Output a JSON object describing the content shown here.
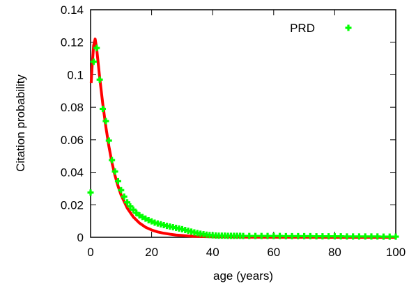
{
  "chart_data": {
    "type": "scatter",
    "xlabel": "age (years)",
    "ylabel": "Citation probability",
    "xlim": [
      0,
      100
    ],
    "ylim": [
      0,
      0.14
    ],
    "x_ticks": [
      "0",
      "20",
      "40",
      "60",
      "80",
      "100"
    ],
    "y_ticks": [
      "0",
      "0.02",
      "0.04",
      "0.06",
      "0.08",
      "0.1",
      "0.12",
      "0.14"
    ],
    "grid": false,
    "legend_position": "top-right",
    "series": [
      {
        "name": "PRD",
        "color": "#00ff00",
        "marker": "plus",
        "x": [
          0,
          1,
          2,
          3,
          4,
          5,
          6,
          7,
          8,
          9,
          10,
          11,
          12,
          13,
          14,
          15,
          16,
          17,
          18,
          19,
          20,
          21,
          22,
          23,
          24,
          25,
          26,
          27,
          28,
          29,
          30,
          31,
          32,
          33,
          34,
          35,
          36,
          37,
          38,
          39,
          40,
          41,
          42,
          43,
          44,
          45,
          46,
          47,
          48,
          49,
          50,
          52,
          54,
          56,
          58,
          60,
          62,
          64,
          66,
          68,
          70,
          72,
          74,
          76,
          78,
          80,
          82,
          84,
          86,
          88,
          90,
          92,
          94,
          96,
          98,
          100
        ],
        "y": [
          0.0275,
          0.108,
          0.1165,
          0.097,
          0.079,
          0.0715,
          0.0595,
          0.0475,
          0.0405,
          0.0345,
          0.029,
          0.025,
          0.0215,
          0.019,
          0.017,
          0.015,
          0.0135,
          0.0125,
          0.0115,
          0.0105,
          0.0098,
          0.009,
          0.0085,
          0.008,
          0.0075,
          0.007,
          0.0066,
          0.0062,
          0.0058,
          0.0054,
          0.005,
          0.0045,
          0.004,
          0.0035,
          0.003,
          0.0026,
          0.0022,
          0.0019,
          0.0016,
          0.0014,
          0.0012,
          0.0011,
          0.001,
          0.001,
          0.001,
          0.0009,
          0.0009,
          0.0009,
          0.0009,
          0.0009,
          0.0008,
          0.0008,
          0.0008,
          0.0008,
          0.0008,
          0.0008,
          0.0008,
          0.0007,
          0.0007,
          0.0007,
          0.0007,
          0.0007,
          0.0006,
          0.0006,
          0.0006,
          0.0006,
          0.0006,
          0.0005,
          0.0005,
          0.0005,
          0.0005,
          0.0005,
          0.0005,
          0.0004,
          0.0004,
          0.0004
        ]
      },
      {
        "type": "line",
        "color": "#ff0000",
        "x": [
          0.2,
          0.5,
          1,
          1.5,
          2,
          2.5,
          3,
          3.5,
          4,
          5,
          6,
          7,
          8,
          9,
          10,
          12,
          14,
          16,
          18,
          20,
          22,
          24,
          26,
          28,
          30,
          32,
          34,
          36,
          38,
          40,
          45,
          50,
          60,
          70,
          80,
          90,
          100
        ],
        "y": [
          0.095,
          0.105,
          0.118,
          0.122,
          0.116,
          0.107,
          0.098,
          0.09,
          0.082,
          0.068,
          0.056,
          0.046,
          0.038,
          0.0315,
          0.026,
          0.018,
          0.0125,
          0.0088,
          0.0062,
          0.0045,
          0.0033,
          0.0025,
          0.0019,
          0.0014,
          0.0011,
          0.0008,
          0.0006,
          0.0005,
          0.0004,
          0.0003,
          0.0002,
          0.0001,
          5e-05,
          3e-05,
          2e-05,
          1e-05,
          1e-05
        ]
      }
    ]
  }
}
